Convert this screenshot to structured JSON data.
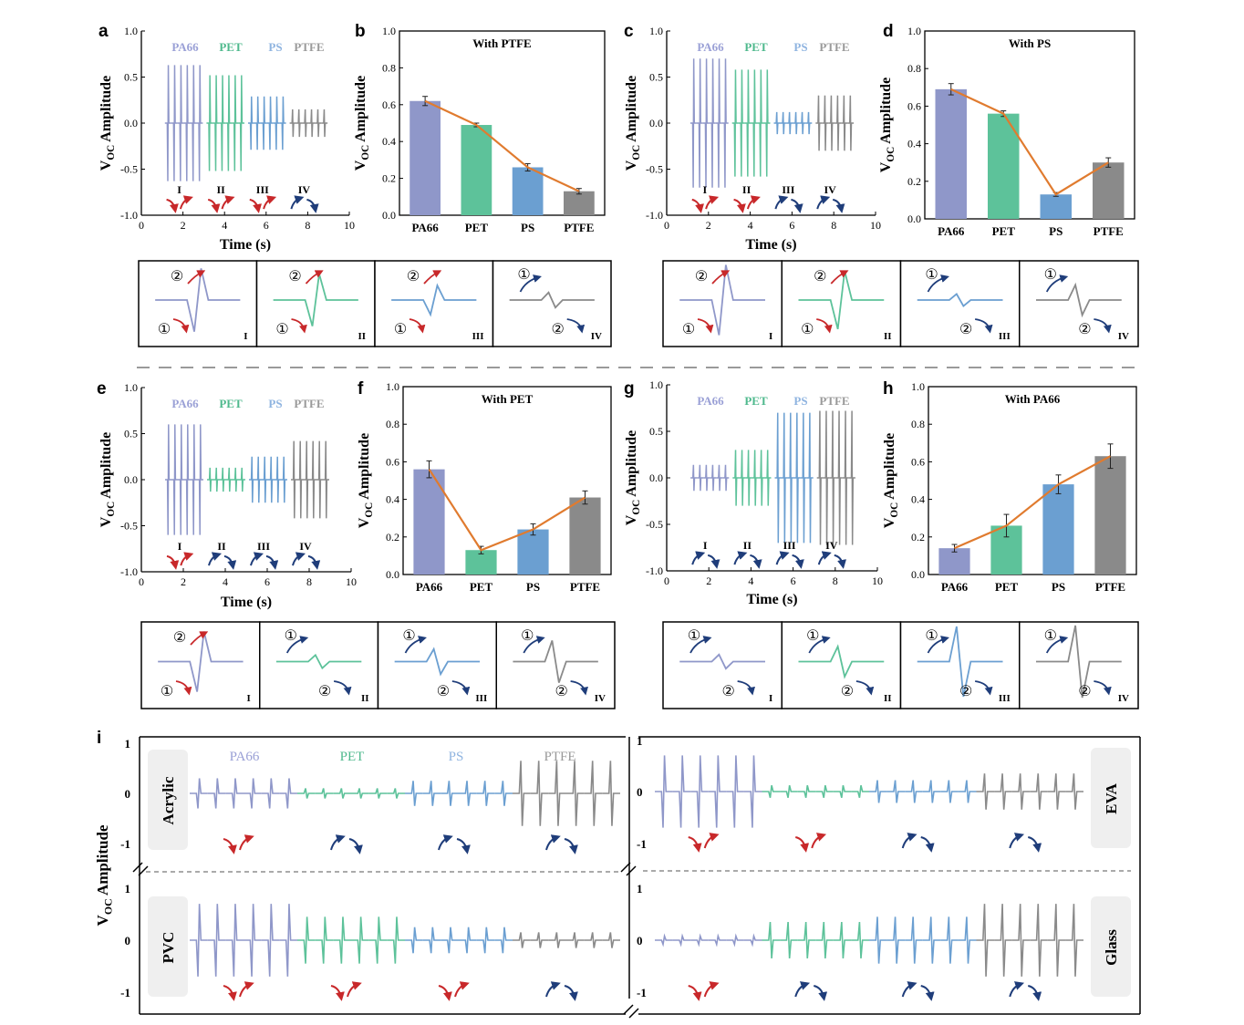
{
  "colors": {
    "PA66": "#8f97c9",
    "PET": "#5dc29a",
    "PS": "#6b9fd1",
    "PTFE": "#8a8a8a",
    "trend": "#e07b2f",
    "red_arrow": "#c8282a",
    "blue_arrow": "#1f3d7a",
    "legend_PA66": "#9aa0d6",
    "legend_PET": "#4fb98d",
    "legend_PS": "#8fb4e0",
    "legend_PTFE": "#9a9a9a"
  },
  "axis": {
    "ylabel_main": "V",
    "ylabel_sub": "OC",
    "ylabel_rest": " Amplitude",
    "xlabel": "Time (s)"
  },
  "roman": [
    "I",
    "II",
    "III",
    "IV"
  ],
  "circled": {
    "one": "①",
    "two": "②"
  },
  "materials": [
    "PA66",
    "PET",
    "PS",
    "PTFE"
  ],
  "chart_data": [
    {
      "panel": "a",
      "type": "line",
      "xlabel": "Time (s)",
      "ylabel": "VOC Amplitude",
      "xlim": [
        0,
        10
      ],
      "ylim": [
        -1.0,
        1.0
      ],
      "xticks": [
        "0",
        "2",
        "4",
        "6",
        "8",
        "10"
      ],
      "yticks": [
        "-1.0",
        "-0.5",
        "0.0",
        "0.5",
        "1.0"
      ],
      "legend": [
        "PA66",
        "PET",
        "PS",
        "PTFE"
      ],
      "segments": [
        {
          "name": "PA66",
          "x": [
            1,
            3
          ],
          "amp": 0.63,
          "sign": 1
        },
        {
          "name": "PET",
          "x": [
            3,
            5
          ],
          "amp": 0.52,
          "sign": 1
        },
        {
          "name": "PS",
          "x": [
            5,
            7
          ],
          "amp": 0.29,
          "sign": 1
        },
        {
          "name": "PTFE",
          "x": [
            7,
            9
          ],
          "amp": 0.15,
          "sign": -1
        }
      ],
      "motion": [
        [
          "I",
          "red"
        ],
        [
          "II",
          "red"
        ],
        [
          "III",
          "red"
        ],
        [
          "IV",
          "blue"
        ]
      ]
    },
    {
      "panel": "b",
      "type": "bar",
      "title": "With PTFE",
      "categories": [
        "PA66",
        "PET",
        "PS",
        "PTFE"
      ],
      "values": [
        0.62,
        0.49,
        0.26,
        0.13
      ],
      "errors": [
        0.025,
        0.01,
        0.02,
        0.015
      ],
      "ylim": [
        0,
        1.0
      ],
      "yticks": [
        "0.0",
        "0.2",
        "0.4",
        "0.6",
        "0.8",
        "1.0"
      ],
      "ylabel": "VOC Amplitude"
    },
    {
      "panel": "c",
      "type": "line",
      "xlabel": "Time (s)",
      "ylabel": "VOC Amplitude",
      "xlim": [
        0,
        10
      ],
      "ylim": [
        -1.0,
        1.0
      ],
      "xticks": [
        "0",
        "2",
        "4",
        "6",
        "8",
        "10"
      ],
      "yticks": [
        "-1.0",
        "-0.5",
        "0.0",
        "0.5",
        "1.0"
      ],
      "legend": [
        "PA66",
        "PET",
        "PS",
        "PTFE"
      ],
      "segments": [
        {
          "name": "PA66",
          "x": [
            1,
            3
          ],
          "amp": 0.7,
          "sign": 1
        },
        {
          "name": "PET",
          "x": [
            3,
            5
          ],
          "amp": 0.58,
          "sign": 1
        },
        {
          "name": "PS",
          "x": [
            5,
            7
          ],
          "amp": 0.12,
          "sign": -1
        },
        {
          "name": "PTFE",
          "x": [
            7,
            9
          ],
          "amp": 0.3,
          "sign": -1
        }
      ],
      "motion": [
        [
          "I",
          "red"
        ],
        [
          "II",
          "red"
        ],
        [
          "III",
          "blue"
        ],
        [
          "IV",
          "blue"
        ]
      ]
    },
    {
      "panel": "d",
      "type": "bar",
      "title": "With PS",
      "categories": [
        "PA66",
        "PET",
        "PS",
        "PTFE"
      ],
      "values": [
        0.69,
        0.56,
        0.13,
        0.3
      ],
      "errors": [
        0.03,
        0.015,
        0.01,
        0.025
      ],
      "ylim": [
        0,
        1.0
      ],
      "yticks": [
        "0.0",
        "0.2",
        "0.4",
        "0.6",
        "0.8",
        "1.0"
      ],
      "ylabel": "VOC Amplitude"
    },
    {
      "panel": "e",
      "type": "line",
      "xlabel": "Time (s)",
      "ylabel": "VOC Amplitude",
      "xlim": [
        0,
        10
      ],
      "ylim": [
        -1.0,
        1.0
      ],
      "xticks": [
        "0",
        "2",
        "4",
        "6",
        "8",
        "10"
      ],
      "yticks": [
        "-1.0",
        "-0.5",
        "0.0",
        "0.5",
        "1.0"
      ],
      "legend": [
        "PA66",
        "PET",
        "PS",
        "PTFE"
      ],
      "segments": [
        {
          "name": "PA66",
          "x": [
            1,
            3
          ],
          "amp": 0.6,
          "sign": 1
        },
        {
          "name": "PET",
          "x": [
            3,
            5
          ],
          "amp": 0.13,
          "sign": -1
        },
        {
          "name": "PS",
          "x": [
            5,
            7
          ],
          "amp": 0.25,
          "sign": -1
        },
        {
          "name": "PTFE",
          "x": [
            7,
            9
          ],
          "amp": 0.42,
          "sign": -1
        }
      ],
      "motion": [
        [
          "I",
          "red"
        ],
        [
          "II",
          "blue"
        ],
        [
          "III",
          "blue"
        ],
        [
          "IV",
          "blue"
        ]
      ]
    },
    {
      "panel": "f",
      "type": "bar",
      "title": "With PET",
      "categories": [
        "PA66",
        "PET",
        "PS",
        "PTFE"
      ],
      "values": [
        0.56,
        0.13,
        0.24,
        0.41
      ],
      "errors": [
        0.045,
        0.02,
        0.03,
        0.035
      ],
      "ylim": [
        0,
        1.0
      ],
      "yticks": [
        "0.0",
        "0.2",
        "0.4",
        "0.6",
        "0.8",
        "1.0"
      ],
      "ylabel": "VOC Amplitude"
    },
    {
      "panel": "g",
      "type": "line",
      "xlabel": "Time (s)",
      "ylabel": "VOC Amplitude",
      "xlim": [
        0,
        10
      ],
      "ylim": [
        -1.0,
        1.0
      ],
      "xticks": [
        "0",
        "2",
        "4",
        "6",
        "8",
        "10"
      ],
      "yticks": [
        "-1.0",
        "-0.5",
        "0.0",
        "0.5",
        "1.0"
      ],
      "legend": [
        "PA66",
        "PET",
        "PS",
        "PTFE"
      ],
      "segments": [
        {
          "name": "PA66",
          "x": [
            1,
            3
          ],
          "amp": 0.14,
          "sign": -1
        },
        {
          "name": "PET",
          "x": [
            3,
            5
          ],
          "amp": 0.3,
          "sign": -1
        },
        {
          "name": "PS",
          "x": [
            5,
            7
          ],
          "amp": 0.7,
          "sign": -1
        },
        {
          "name": "PTFE",
          "x": [
            7,
            9
          ],
          "amp": 0.72,
          "sign": -1
        }
      ],
      "motion": [
        [
          "I",
          "blue"
        ],
        [
          "II",
          "blue"
        ],
        [
          "III",
          "blue"
        ],
        [
          "IV",
          "blue"
        ]
      ]
    },
    {
      "panel": "h",
      "type": "bar",
      "title": "With PA66",
      "categories": [
        "PA66",
        "PET",
        "PS",
        "PTFE"
      ],
      "values": [
        0.14,
        0.26,
        0.48,
        0.63
      ],
      "errors": [
        0.02,
        0.06,
        0.05,
        0.065
      ],
      "ylim": [
        0,
        1.0
      ],
      "yticks": [
        "0.0",
        "0.2",
        "0.4",
        "0.6",
        "0.8",
        "1.0"
      ],
      "ylabel": "VOC Amplitude"
    },
    {
      "panel": "i",
      "type": "line",
      "ylabel": "VOC Amplitude",
      "yticks": [
        "-1",
        "0",
        "1"
      ],
      "legend": [
        "PA66",
        "PET",
        "PS",
        "PTFE"
      ],
      "subplots": [
        {
          "substrate": "Acrylic",
          "amps": [
            0.3,
            0.1,
            0.25,
            0.65
          ],
          "motion": [
            "red",
            "blue",
            "blue",
            "blue"
          ]
        },
        {
          "substrate": "EVA",
          "amps": [
            0.7,
            0.12,
            0.22,
            0.35
          ],
          "motion": [
            "red",
            "red",
            "blue",
            "blue"
          ]
        },
        {
          "substrate": "PVC",
          "amps": [
            0.7,
            0.45,
            0.25,
            0.15
          ],
          "motion": [
            "red",
            "red",
            "red",
            "blue"
          ]
        },
        {
          "substrate": "Glass",
          "amps": [
            0.08,
            0.35,
            0.45,
            0.7
          ],
          "motion": [
            "red",
            "blue",
            "blue",
            "blue"
          ]
        }
      ]
    }
  ]
}
